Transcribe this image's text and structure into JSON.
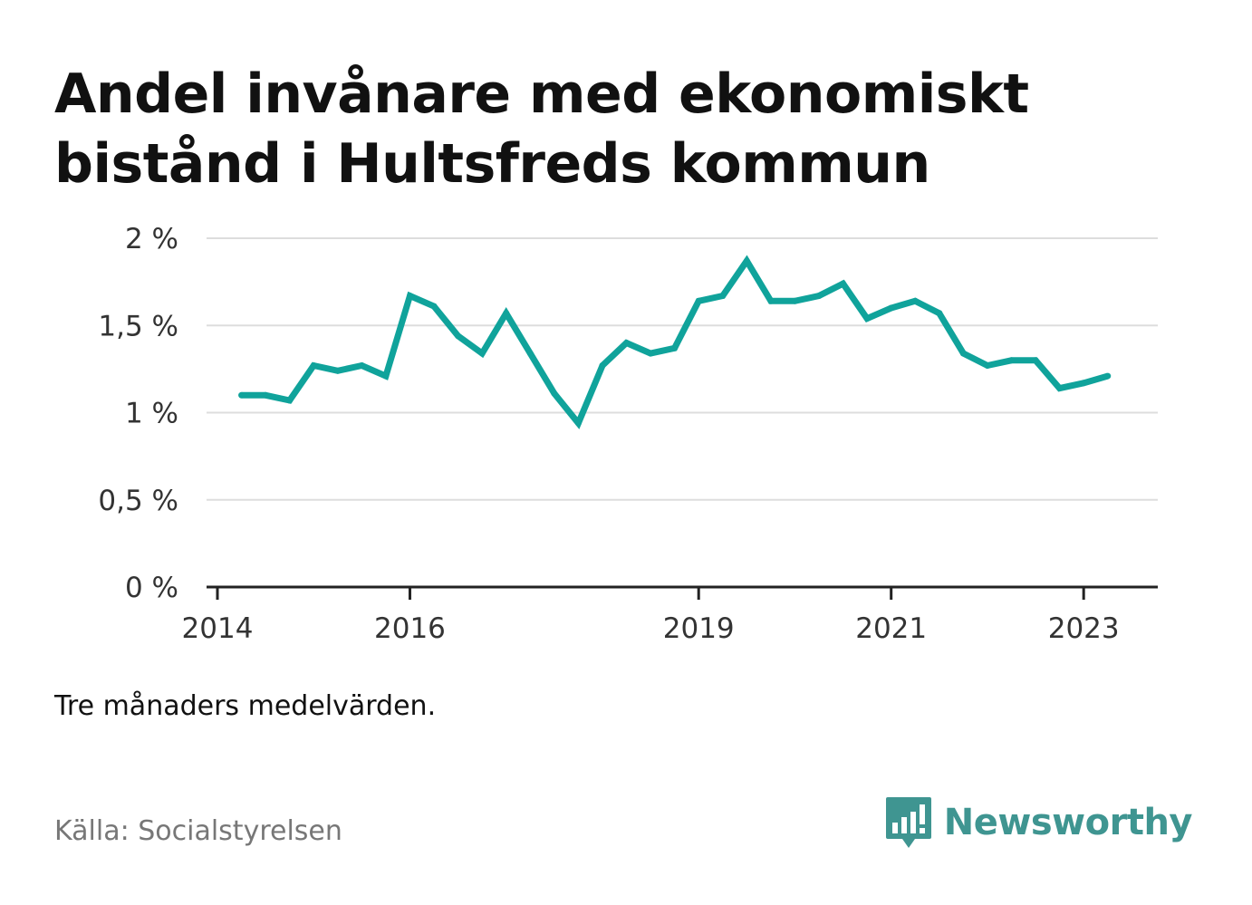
{
  "title": "Andel invånare med ekonomiskt bistånd i Hultsfreds kommun",
  "note": "Tre månaders medelvärden.",
  "source": "Källa: Socialstyrelsen",
  "brand": {
    "name": "Newsworthy",
    "icon": "bar-chart-speech-bubble-icon",
    "color": "#3f9591"
  },
  "colors": {
    "line": "#10a39b",
    "grid": "#dddddd",
    "axis": "#222222",
    "tick_text": "#333333"
  },
  "chart_data": {
    "type": "line",
    "title": "Andel invånare med ekonomiskt bistånd i Hultsfreds kommun",
    "xlabel": "",
    "ylabel": "",
    "x_ticks": [
      "2014",
      "2016",
      "2019",
      "2021",
      "2023"
    ],
    "y_ticks": [
      "0 %",
      "0,5 %",
      "1 %",
      "1,5 %",
      "2 %"
    ],
    "ylim": [
      0,
      2
    ],
    "xlim": [
      "2014-01",
      "2023-09"
    ],
    "grid": true,
    "legend": "none",
    "series": [
      {
        "x": [
          "2014-04",
          "2014-07",
          "2014-10",
          "2015-01",
          "2015-04",
          "2015-07",
          "2015-10",
          "2016-01",
          "2016-04",
          "2016-07",
          "2016-10",
          "2017-01",
          "2017-04",
          "2017-07",
          "2017-10",
          "2018-01",
          "2018-04",
          "2018-07",
          "2018-10",
          "2019-01",
          "2019-04",
          "2019-07",
          "2019-10",
          "2020-01",
          "2020-04",
          "2020-07",
          "2020-10",
          "2021-01",
          "2021-04",
          "2021-07",
          "2021-10",
          "2022-01",
          "2022-04",
          "2022-07",
          "2022-10",
          "2023-01",
          "2023-04"
        ],
        "values": [
          1.1,
          1.1,
          1.07,
          1.27,
          1.24,
          1.27,
          1.21,
          1.67,
          1.61,
          1.44,
          1.34,
          1.57,
          1.34,
          1.11,
          0.94,
          1.27,
          1.4,
          1.34,
          1.37,
          1.64,
          1.67,
          1.87,
          1.64,
          1.64,
          1.67,
          1.74,
          1.54,
          1.6,
          1.64,
          1.57,
          1.34,
          1.27,
          1.3,
          1.3,
          1.14,
          1.17,
          1.21
        ]
      }
    ]
  }
}
